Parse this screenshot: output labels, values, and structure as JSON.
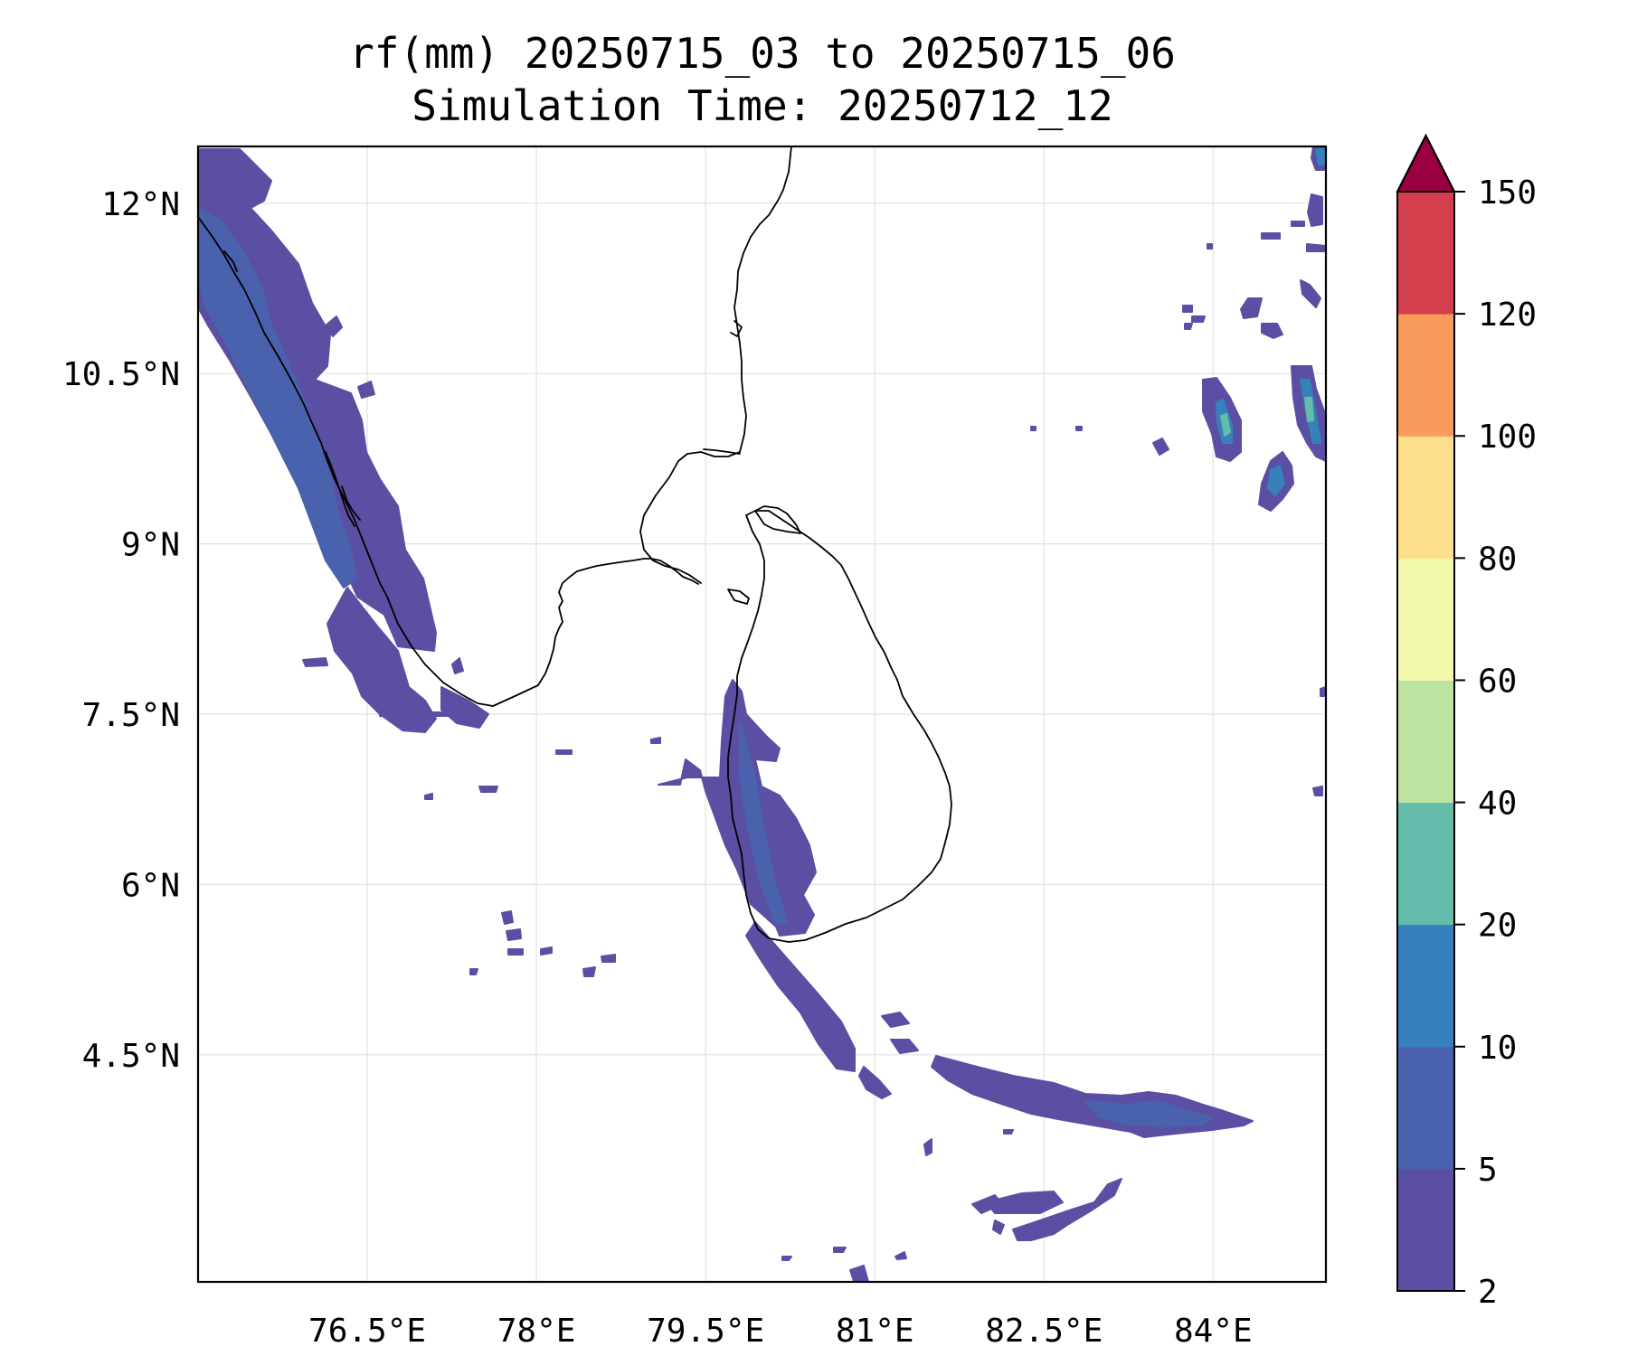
{
  "title": {
    "line1": "rf(mm) 20250715_03 to 20250715_06",
    "line2": "Simulation Time: 20250712_12"
  },
  "map": {
    "lon_range": [
      75.0,
      85.0
    ],
    "lat_range": [
      2.5,
      12.5
    ],
    "gridlines": true,
    "x_ticks": [
      {
        "value": 76.5,
        "label": "76.5°E"
      },
      {
        "value": 78.0,
        "label": "78°E"
      },
      {
        "value": 79.5,
        "label": "79.5°E"
      },
      {
        "value": 81.0,
        "label": "81°E"
      },
      {
        "value": 82.5,
        "label": "82.5°E"
      },
      {
        "value": 84.0,
        "label": "84°E"
      }
    ],
    "y_ticks": [
      {
        "value": 12.0,
        "label": "12°N"
      },
      {
        "value": 10.5,
        "label": "10.5°N"
      },
      {
        "value": 9.0,
        "label": "9°N"
      },
      {
        "value": 7.5,
        "label": "7.5°N"
      },
      {
        "value": 6.0,
        "label": "6°N"
      },
      {
        "value": 4.5,
        "label": "4.5°N"
      }
    ]
  },
  "colorbar": {
    "levels": [
      2,
      5,
      10,
      20,
      40,
      60,
      80,
      100,
      120,
      150
    ],
    "labels": [
      "2",
      "5",
      "10",
      "20",
      "40",
      "60",
      "80",
      "100",
      "120",
      "150"
    ],
    "colors": [
      "#5a4fa2",
      "#4a62ad",
      "#3680bb",
      "#64bcaa",
      "#bde3a0",
      "#f3f9ad",
      "#fddf8b",
      "#f99b5b",
      "#d33f4d"
    ],
    "extend_color": "#9a0041",
    "extend": "max"
  },
  "rain_colors": {
    "light": "#5a4fa2",
    "medium": "#4a62ad",
    "moderate": "#3680bb",
    "heavy": "#64bcaa"
  },
  "coast_color": "#000000"
}
